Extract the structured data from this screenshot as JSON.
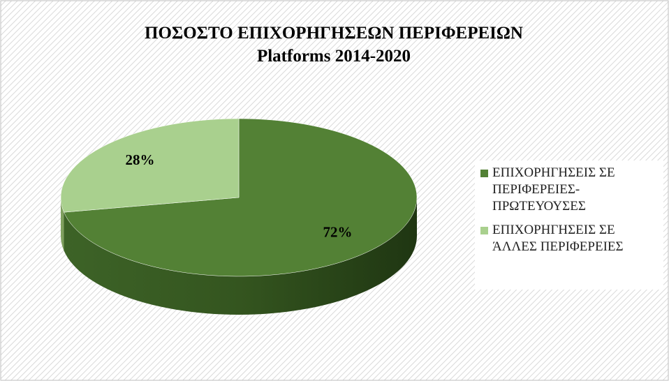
{
  "chart_data": {
    "type": "pie3d",
    "title": "ΠΟΣΟΣΤΟ ΕΠΙΧΟΡΗΓΗΣΕΩΝ ΠΕΡΙΦΕΡΕΙΩΝ",
    "subtitle": "Platforms 2014-2020",
    "categories": [
      "ΕΠΙΧΟΡΗΓΗΣΕΙΣ ΣΕ ΠΕΡΙΦΕΡΕΙΕΣ-ΠΡΩΤΕΥΟΥΣΕΣ",
      "ΕΠΙΧΟΡΗΓΗΣΕΙΣ ΣΕ ΆΛΛΕΣ ΠΕΡΙΦΕΡΕΙΕΣ"
    ],
    "values": [
      72,
      28
    ],
    "value_labels": [
      "72%",
      "28%"
    ],
    "colors": [
      "#538135",
      "#a9d08e"
    ],
    "legend": "right"
  }
}
